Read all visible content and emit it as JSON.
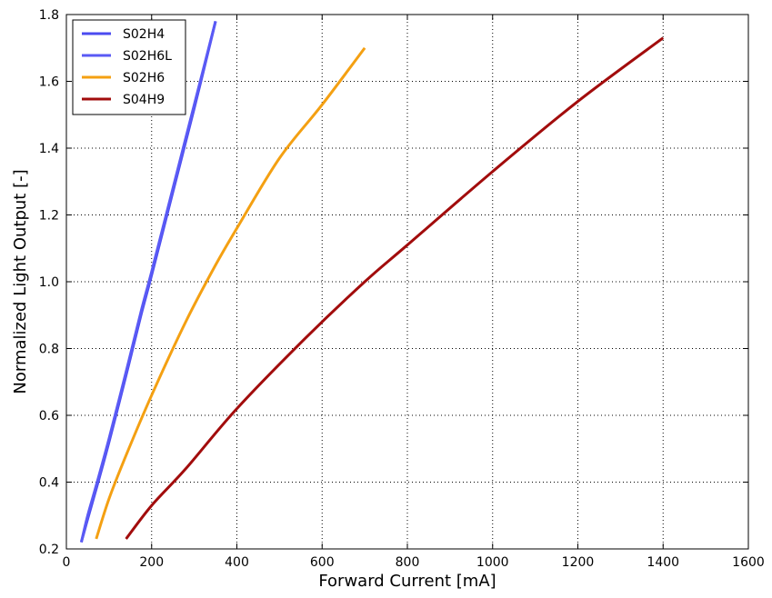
{
  "chart_data": {
    "type": "line",
    "xlabel": "Forward Current [mA]",
    "ylabel": "Normalized Light Output [-]",
    "xlim": [
      0,
      1600
    ],
    "ylim": [
      0.2,
      1.8
    ],
    "xticks": [
      0,
      200,
      400,
      600,
      800,
      1000,
      1200,
      1400,
      1600
    ],
    "yticks": [
      0.2,
      0.4,
      0.6,
      0.8,
      1.0,
      1.2,
      1.4,
      1.6,
      1.8
    ],
    "xtick_labels": [
      "0",
      "200",
      "400",
      "600",
      "800",
      "1000",
      "1200",
      "1400",
      "1600"
    ],
    "ytick_labels": [
      "0.2",
      "0.4",
      "0.6",
      "0.8",
      "1.0",
      "1.2",
      "1.4",
      "1.6",
      "1.8"
    ],
    "grid": true,
    "grid_style": "dotted",
    "legend_position": "top-left",
    "series": [
      {
        "name": "S02H4",
        "color": "#4b4bf0",
        "x": [
          35,
          50,
          70,
          100,
          140,
          175,
          200,
          250,
          300,
          350
        ],
        "y": [
          0.22,
          0.29,
          0.38,
          0.52,
          0.72,
          0.9,
          1.02,
          1.27,
          1.52,
          1.78
        ]
      },
      {
        "name": "S02H6L",
        "color": "#5a5af5",
        "x": [
          35,
          50,
          70,
          100,
          140,
          175,
          200,
          250,
          300,
          350
        ],
        "y": [
          0.22,
          0.3,
          0.39,
          0.53,
          0.73,
          0.91,
          1.03,
          1.28,
          1.53,
          1.78
        ]
      },
      {
        "name": "S02H6",
        "color": "#f4a012",
        "x": [
          70,
          100,
          140,
          200,
          280,
          350,
          400,
          500,
          600,
          700
        ],
        "y": [
          0.23,
          0.35,
          0.48,
          0.66,
          0.88,
          1.05,
          1.16,
          1.37,
          1.53,
          1.7
        ]
      },
      {
        "name": "S04H9",
        "color": "#a20c0c",
        "x": [
          140,
          200,
          280,
          400,
          560,
          700,
          800,
          1000,
          1200,
          1400
        ],
        "y": [
          0.23,
          0.33,
          0.44,
          0.62,
          0.83,
          1.0,
          1.11,
          1.33,
          1.54,
          1.73
        ]
      }
    ]
  }
}
